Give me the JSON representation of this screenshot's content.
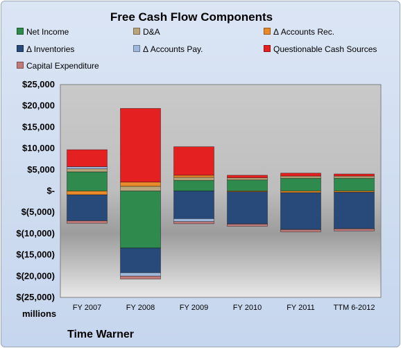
{
  "title": "Free Cash Flow Components",
  "units_label": "millions",
  "company": "Time Warner",
  "chart_data": {
    "type": "bar",
    "stacked": true,
    "title": "Free Cash Flow Components",
    "xlabel": "",
    "ylabel": "millions",
    "ylim": [
      -25000,
      25000
    ],
    "yticks": [
      25000,
      20000,
      15000,
      10000,
      5000,
      0,
      -5000,
      -10000,
      -15000,
      -20000,
      -25000
    ],
    "ytick_labels": [
      "$25,000",
      "$20,000",
      "$15,000",
      "$10,000",
      "$5,000",
      "$-",
      "$(5,000)",
      "$(10,000)",
      "$(15,000)",
      "$(20,000)",
      "$(25,000)"
    ],
    "categories": [
      "FY 2007",
      "FY 2008",
      "FY 2009",
      "FY 2010",
      "FY 2011",
      "TTM 6-2012"
    ],
    "legend_placement": "top",
    "grid": false,
    "series": [
      {
        "name": "Net Income",
        "color": "#2f8a4e",
        "values": [
          4500,
          -13400,
          2500,
          2600,
          3000,
          3000
        ]
      },
      {
        "name": "D&A",
        "color": "#b9a57a",
        "values": [
          700,
          1100,
          700,
          500,
          500,
          500
        ]
      },
      {
        "name": "Δ Accounts Rec.",
        "color": "#e8892a",
        "values": [
          -900,
          1000,
          500,
          -200,
          -400,
          -300
        ]
      },
      {
        "name": "Δ Inventories",
        "color": "#284a7a",
        "values": [
          -6100,
          -5800,
          -6500,
          -7500,
          -8600,
          -8500
        ]
      },
      {
        "name": "Δ Accounts Pay.",
        "color": "#9fb9dc",
        "values": [
          500,
          -800,
          -700,
          -100,
          -100,
          -100
        ]
      },
      {
        "name": "Questionable Cash Sources",
        "color": "#e52020",
        "values": [
          4000,
          17300,
          6700,
          600,
          700,
          500
        ]
      },
      {
        "name": "Capital Expenditure",
        "color": "#c07a7a",
        "values": [
          -600,
          -700,
          -500,
          -500,
          -500,
          -500
        ]
      }
    ]
  }
}
